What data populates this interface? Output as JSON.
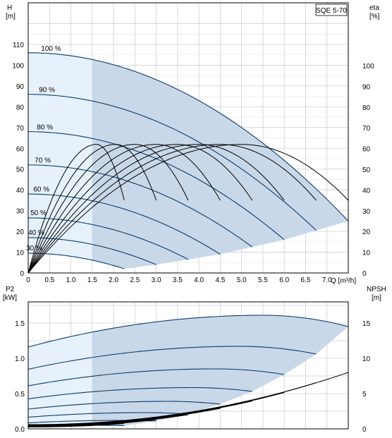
{
  "chart_data": [
    {
      "type": "line",
      "title": "SQE 5-70",
      "ylabel_left": [
        "H",
        "[m]"
      ],
      "ylabel_right": [
        "eta",
        "[%]"
      ],
      "xlabel": "Q [m³/h]",
      "xlim": [
        0,
        7.5
      ],
      "ylim": [
        0,
        110
      ],
      "eta_lim": [
        0,
        100
      ],
      "grid": true,
      "x_ticks": [
        "0",
        "0.5",
        "1.0",
        "1.5",
        "2.0",
        "2.5",
        "3.0",
        "3.5",
        "4.0",
        "4.5",
        "5.0",
        "5.5",
        "6.0",
        "6.5",
        "7.0"
      ],
      "x_tick_values": [
        0,
        0.5,
        1,
        1.5,
        2,
        2.5,
        3,
        3.5,
        4,
        4.5,
        5,
        5.5,
        6,
        6.5,
        7
      ],
      "y_ticks": [
        "0",
        "10",
        "20",
        "30",
        "40",
        "50",
        "60",
        "70",
        "80",
        "90",
        "100",
        "110"
      ],
      "y_tick_values": [
        0,
        10,
        20,
        30,
        40,
        50,
        60,
        70,
        80,
        90,
        100,
        110
      ],
      "eta_ticks": [
        "0",
        "10",
        "20",
        "30",
        "40",
        "50",
        "60",
        "70",
        "80",
        "90",
        "100"
      ],
      "eta_tick_values": [
        0,
        10,
        20,
        30,
        40,
        50,
        60,
        70,
        80,
        90,
        100
      ],
      "speed_curves": [
        {
          "label": "100 %",
          "shut_off": 106,
          "q_max": 7.5,
          "h_end": 25
        },
        {
          "label": "90 %",
          "shut_off": 86,
          "q_max": 6.75,
          "h_end": 20.5
        },
        {
          "label": "80 %",
          "shut_off": 68,
          "q_max": 6.0,
          "h_end": 16
        },
        {
          "label": "70 %",
          "shut_off": 52,
          "q_max": 5.25,
          "h_end": 12.5
        },
        {
          "label": "60 %",
          "shut_off": 38,
          "q_max": 4.5,
          "h_end": 9
        },
        {
          "label": "50 %",
          "shut_off": 26.5,
          "q_max": 3.75,
          "h_end": 6.5
        },
        {
          "label": "40 %",
          "shut_off": 17,
          "q_max": 3.0,
          "h_end": 4
        },
        {
          "label": "30 %",
          "shut_off": 9.5,
          "q_max": 2.25,
          "h_end": 2
        }
      ],
      "efficiency_curves": {
        "eta_max": 62,
        "end_q": [
          2.25,
          3.0,
          3.75,
          4.5,
          5.25,
          6.0,
          6.75,
          7.5
        ],
        "eta_end": 35,
        "peak_q": [
          1.6,
          2.05,
          2.5,
          3.0,
          3.5,
          4.0,
          4.5,
          5.0
        ]
      },
      "colors": {
        "curve": "#0b3c6e",
        "fill": "#c9d8e8",
        "fill_light": "#e6f1fb",
        "grid": "#cfcfcf",
        "eta": "#000000"
      }
    },
    {
      "type": "line",
      "ylabel_left": [
        "P2",
        "[kW]"
      ],
      "ylabel_right": [
        "NPSH",
        "[m]"
      ],
      "xlim": [
        0,
        7.5
      ],
      "ylim": [
        0,
        1.75
      ],
      "npsh_lim": [
        0,
        17.5
      ],
      "grid": true,
      "y_ticks": [
        "0.0",
        "0.5",
        "1.0",
        "1.5"
      ],
      "y_tick_values": [
        0,
        0.5,
        1.0,
        1.5
      ],
      "npsh_ticks": [
        "0",
        "5",
        "10",
        "15"
      ],
      "npsh_tick_values": [
        0,
        5,
        10,
        15
      ],
      "power_curves": [
        {
          "p0": 1.16,
          "q_peak": 5.5,
          "p_peak": 1.61,
          "q_max": 7.5,
          "p_end": 1.45
        },
        {
          "p0": 0.845,
          "q_peak": 4.95,
          "p_peak": 1.17,
          "q_max": 6.75,
          "p_end": 1.06
        },
        {
          "p0": 0.61,
          "q_peak": 4.4,
          "p_peak": 0.85,
          "q_max": 6.0,
          "p_end": 0.77
        },
        {
          "p0": 0.425,
          "q_peak": 3.85,
          "p_peak": 0.585,
          "q_max": 5.25,
          "p_end": 0.53
        },
        {
          "p0": 0.28,
          "q_peak": 3.3,
          "p_peak": 0.39,
          "q_max": 4.5,
          "p_end": 0.35
        },
        {
          "p0": 0.165,
          "q_peak": 2.75,
          "p_peak": 0.23,
          "q_max": 3.75,
          "p_end": 0.21
        },
        {
          "p0": 0.085,
          "q_peak": 2.2,
          "p_peak": 0.12,
          "q_max": 3.0,
          "p_end": 0.11
        },
        {
          "p0": 0.035,
          "q_peak": 1.65,
          "p_peak": 0.05,
          "q_max": 2.25,
          "p_end": 0.045
        }
      ],
      "npsh_curves": {
        "q_max": [
          7.5,
          6.75,
          6.0,
          5.25,
          4.5,
          3.75,
          3.0,
          2.25
        ],
        "npsh_end": [
          8.0,
          6.55,
          5.15,
          3.95,
          2.9,
          2.0,
          1.3,
          0.75
        ],
        "npsh_start": 0.6
      }
    }
  ]
}
